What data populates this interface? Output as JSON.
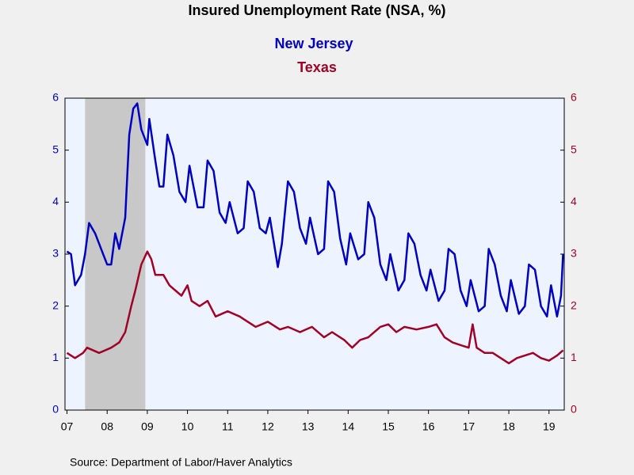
{
  "chart_data": {
    "type": "line",
    "title": "Insured Unemployment Rate (NSA, %)",
    "source": "Source:  Department of Labor/Haver Analytics",
    "xlim": [
      2007.45,
      2019.88
    ],
    "xticks": [
      {
        "value": 2007.5,
        "label": "07"
      },
      {
        "value": 2008.5,
        "label": "08"
      },
      {
        "value": 2009.5,
        "label": "09"
      },
      {
        "value": 2010.5,
        "label": "10"
      },
      {
        "value": 2011.5,
        "label": "11"
      },
      {
        "value": 2012.5,
        "label": "12"
      },
      {
        "value": 2013.5,
        "label": "13"
      },
      {
        "value": 2014.5,
        "label": "14"
      },
      {
        "value": 2015.5,
        "label": "15"
      },
      {
        "value": 2016.5,
        "label": "16"
      },
      {
        "value": 2017.5,
        "label": "17"
      },
      {
        "value": 2018.5,
        "label": "18"
      },
      {
        "value": 2019.5,
        "label": "19"
      }
    ],
    "ylim": [
      0,
      6
    ],
    "yticks": [
      0,
      1,
      2,
      3,
      4,
      5,
      6
    ],
    "y2lim": [
      0,
      6
    ],
    "y2ticks": [
      0,
      1,
      2,
      3,
      4,
      5,
      6
    ],
    "shaded_region": [
      2007.95,
      2009.45
    ],
    "shade_color": "#c8c8c8",
    "series": [
      {
        "name": "New Jersey",
        "color": "#0000c0",
        "axis": "y",
        "x": [
          2007.5,
          2007.6,
          2007.7,
          2007.85,
          2007.95,
          2008.05,
          2008.2,
          2008.35,
          2008.5,
          2008.6,
          2008.7,
          2008.8,
          2008.95,
          2009.05,
          2009.15,
          2009.25,
          2009.35,
          2009.5,
          2009.55,
          2009.7,
          2009.8,
          2009.9,
          2010.0,
          2010.15,
          2010.3,
          2010.45,
          2010.55,
          2010.75,
          2010.9,
          2011.0,
          2011.15,
          2011.3,
          2011.45,
          2011.55,
          2011.75,
          2011.9,
          2012.0,
          2012.15,
          2012.3,
          2012.45,
          2012.55,
          2012.75,
          2012.85,
          2013.0,
          2013.15,
          2013.3,
          2013.45,
          2013.55,
          2013.75,
          2013.9,
          2014.0,
          2014.15,
          2014.3,
          2014.45,
          2014.55,
          2014.75,
          2014.9,
          2015.0,
          2015.15,
          2015.3,
          2015.45,
          2015.55,
          2015.75,
          2015.9,
          2016.0,
          2016.15,
          2016.3,
          2016.45,
          2016.55,
          2016.75,
          2016.9,
          2017.0,
          2017.15,
          2017.3,
          2017.45,
          2017.55,
          2017.75,
          2017.9,
          2018.0,
          2018.15,
          2018.3,
          2018.45,
          2018.55,
          2018.75,
          2018.9,
          2019.0,
          2019.15,
          2019.3,
          2019.45,
          2019.55,
          2019.7,
          2019.8,
          2019.85
        ],
        "values": [
          3.05,
          3.0,
          2.4,
          2.6,
          3.0,
          3.6,
          3.4,
          3.1,
          2.8,
          2.8,
          3.4,
          3.1,
          3.7,
          5.3,
          5.8,
          5.9,
          5.4,
          5.1,
          5.6,
          4.8,
          4.3,
          4.3,
          5.3,
          4.9,
          4.2,
          4.0,
          4.7,
          3.9,
          3.9,
          4.8,
          4.6,
          3.8,
          3.6,
          4.0,
          3.4,
          3.5,
          4.4,
          4.2,
          3.5,
          3.4,
          3.7,
          2.75,
          3.2,
          4.4,
          4.2,
          3.5,
          3.2,
          3.7,
          3.0,
          3.1,
          4.4,
          4.2,
          3.3,
          2.8,
          3.4,
          2.9,
          3.0,
          4.0,
          3.7,
          2.8,
          2.5,
          3.0,
          2.3,
          2.5,
          3.4,
          3.2,
          2.6,
          2.3,
          2.7,
          2.1,
          2.3,
          3.1,
          3.0,
          2.3,
          2.0,
          2.5,
          1.9,
          2.0,
          3.1,
          2.8,
          2.2,
          1.9,
          2.5,
          1.85,
          2.0,
          2.8,
          2.7,
          2.0,
          1.8,
          2.4,
          1.8,
          2.2,
          3.0
        ]
      },
      {
        "name": "Texas",
        "color": "#a00028",
        "axis": "y2",
        "x": [
          2007.5,
          2007.7,
          2007.9,
          2008.0,
          2008.3,
          2008.6,
          2008.8,
          2008.95,
          2009.1,
          2009.2,
          2009.35,
          2009.5,
          2009.6,
          2009.7,
          2009.9,
          2010.05,
          2010.2,
          2010.35,
          2010.5,
          2010.6,
          2010.8,
          2011.0,
          2011.2,
          2011.5,
          2011.8,
          2012.0,
          2012.2,
          2012.5,
          2012.8,
          2013.0,
          2013.3,
          2013.6,
          2013.9,
          2014.1,
          2014.4,
          2014.6,
          2014.8,
          2015.0,
          2015.3,
          2015.5,
          2015.7,
          2015.9,
          2016.2,
          2016.5,
          2016.7,
          2016.9,
          2017.1,
          2017.3,
          2017.5,
          2017.6,
          2017.7,
          2017.9,
          2018.1,
          2018.3,
          2018.5,
          2018.7,
          2018.9,
          2019.1,
          2019.3,
          2019.5,
          2019.7,
          2019.85
        ],
        "values": [
          1.1,
          1.0,
          1.1,
          1.2,
          1.1,
          1.2,
          1.3,
          1.5,
          2.0,
          2.3,
          2.8,
          3.05,
          2.9,
          2.6,
          2.6,
          2.4,
          2.3,
          2.2,
          2.4,
          2.1,
          2.0,
          2.1,
          1.8,
          1.9,
          1.8,
          1.7,
          1.6,
          1.7,
          1.55,
          1.6,
          1.5,
          1.6,
          1.4,
          1.5,
          1.35,
          1.2,
          1.35,
          1.4,
          1.6,
          1.65,
          1.5,
          1.6,
          1.55,
          1.6,
          1.65,
          1.4,
          1.3,
          1.25,
          1.2,
          1.65,
          1.2,
          1.1,
          1.1,
          1.0,
          0.9,
          1.0,
          1.05,
          1.1,
          1.0,
          0.95,
          1.05,
          1.15
        ]
      }
    ]
  }
}
